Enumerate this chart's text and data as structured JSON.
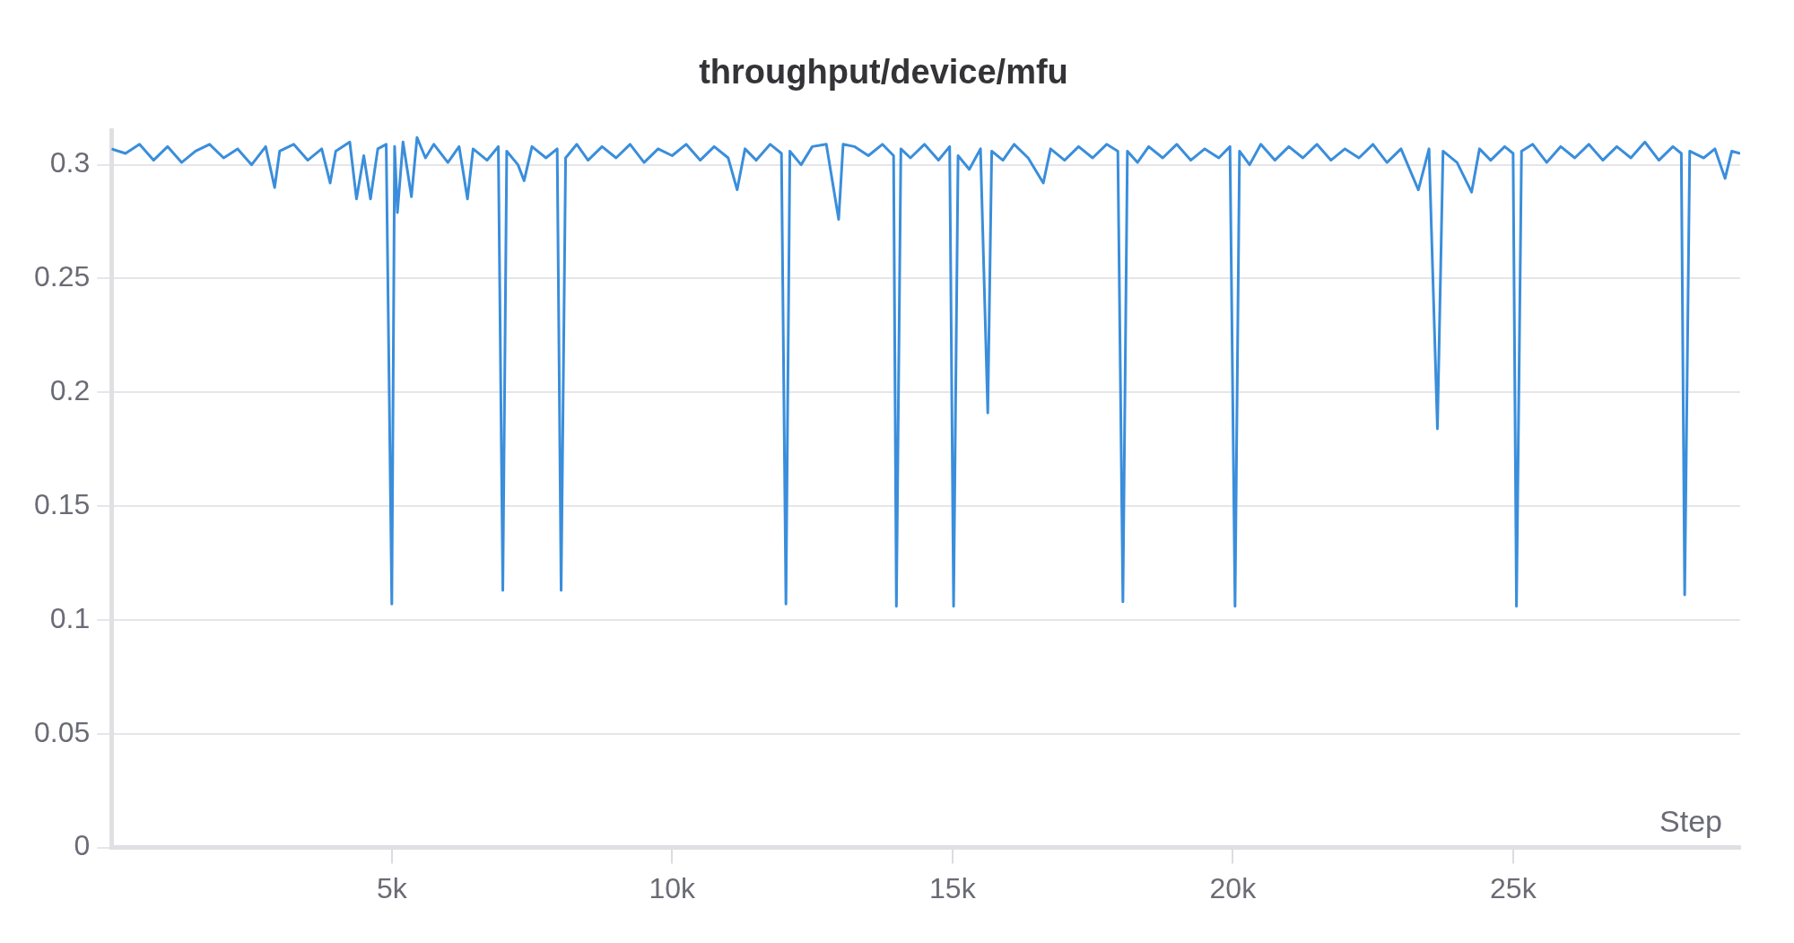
{
  "chart_data": {
    "type": "line",
    "title": "throughput/device/mfu",
    "xlabel": "Step",
    "xlim": [
      0,
      29050
    ],
    "ylim": [
      0,
      0.315
    ],
    "xticks": [
      {
        "value": 5000,
        "label": "5k"
      },
      {
        "value": 10000,
        "label": "10k"
      },
      {
        "value": 15000,
        "label": "15k"
      },
      {
        "value": 20000,
        "label": "20k"
      },
      {
        "value": 25000,
        "label": "25k"
      }
    ],
    "yticks": [
      0,
      0.05,
      0.1,
      0.15,
      0.2,
      0.25,
      0.3
    ],
    "grid": "y",
    "legend": false,
    "marker": "none",
    "line_style": "solid",
    "series": [
      {
        "color": "#3a8edb",
        "x": [
          0,
          250,
          500,
          750,
          1000,
          1250,
          1500,
          1750,
          2000,
          2250,
          2500,
          2750,
          2910,
          3000,
          3250,
          3500,
          3750,
          3900,
          4000,
          4250,
          4370,
          4500,
          4620,
          4750,
          4900,
          5000,
          5050,
          5100,
          5200,
          5350,
          5450,
          5600,
          5750,
          6000,
          6200,
          6350,
          6450,
          6700,
          6900,
          6980,
          7050,
          7250,
          7360,
          7500,
          7750,
          7950,
          8020,
          8100,
          8300,
          8500,
          8750,
          9000,
          9250,
          9500,
          9750,
          10000,
          10250,
          10500,
          10750,
          11000,
          11160,
          11300,
          11500,
          11750,
          11950,
          12030,
          12100,
          12300,
          12500,
          12750,
          12970,
          13050,
          13250,
          13500,
          13750,
          13950,
          14000,
          14080,
          14250,
          14500,
          14750,
          14950,
          15020,
          15100,
          15300,
          15500,
          15630,
          15700,
          15900,
          16100,
          16350,
          16620,
          16750,
          17000,
          17250,
          17500,
          17750,
          17950,
          18040,
          18120,
          18300,
          18500,
          18750,
          19000,
          19250,
          19500,
          19750,
          19950,
          20040,
          20120,
          20300,
          20500,
          20750,
          21000,
          21250,
          21500,
          21750,
          22000,
          22250,
          22500,
          22750,
          23000,
          23310,
          23500,
          23650,
          23750,
          24000,
          24260,
          24400,
          24600,
          24850,
          25000,
          25060,
          25150,
          25350,
          25600,
          25850,
          26100,
          26350,
          26600,
          26850,
          27100,
          27350,
          27600,
          27850,
          28000,
          28060,
          28150,
          28400,
          28600,
          28780,
          28900,
          29050
        ],
        "values": [
          0.307,
          0.305,
          0.309,
          0.302,
          0.308,
          0.301,
          0.306,
          0.309,
          0.303,
          0.307,
          0.3,
          0.308,
          0.29,
          0.306,
          0.309,
          0.302,
          0.307,
          0.292,
          0.306,
          0.31,
          0.285,
          0.304,
          0.285,
          0.307,
          0.309,
          0.107,
          0.308,
          0.279,
          0.31,
          0.286,
          0.312,
          0.303,
          0.309,
          0.301,
          0.308,
          0.285,
          0.307,
          0.302,
          0.308,
          0.113,
          0.306,
          0.3,
          0.293,
          0.308,
          0.303,
          0.307,
          0.113,
          0.303,
          0.309,
          0.302,
          0.308,
          0.303,
          0.309,
          0.301,
          0.307,
          0.304,
          0.309,
          0.302,
          0.308,
          0.303,
          0.289,
          0.307,
          0.302,
          0.309,
          0.305,
          0.107,
          0.306,
          0.3,
          0.308,
          0.309,
          0.276,
          0.309,
          0.308,
          0.304,
          0.309,
          0.304,
          0.106,
          0.307,
          0.303,
          0.309,
          0.302,
          0.308,
          0.106,
          0.304,
          0.298,
          0.307,
          0.191,
          0.306,
          0.302,
          0.309,
          0.303,
          0.292,
          0.307,
          0.302,
          0.308,
          0.303,
          0.309,
          0.306,
          0.108,
          0.306,
          0.301,
          0.308,
          0.303,
          0.309,
          0.302,
          0.307,
          0.303,
          0.308,
          0.106,
          0.306,
          0.3,
          0.309,
          0.302,
          0.308,
          0.303,
          0.309,
          0.302,
          0.307,
          0.303,
          0.309,
          0.301,
          0.307,
          0.289,
          0.307,
          0.184,
          0.306,
          0.301,
          0.288,
          0.307,
          0.302,
          0.308,
          0.305,
          0.106,
          0.306,
          0.309,
          0.301,
          0.308,
          0.303,
          0.309,
          0.302,
          0.308,
          0.303,
          0.31,
          0.302,
          0.308,
          0.305,
          0.111,
          0.306,
          0.303,
          0.307,
          0.294,
          0.306,
          0.305
        ]
      }
    ]
  }
}
